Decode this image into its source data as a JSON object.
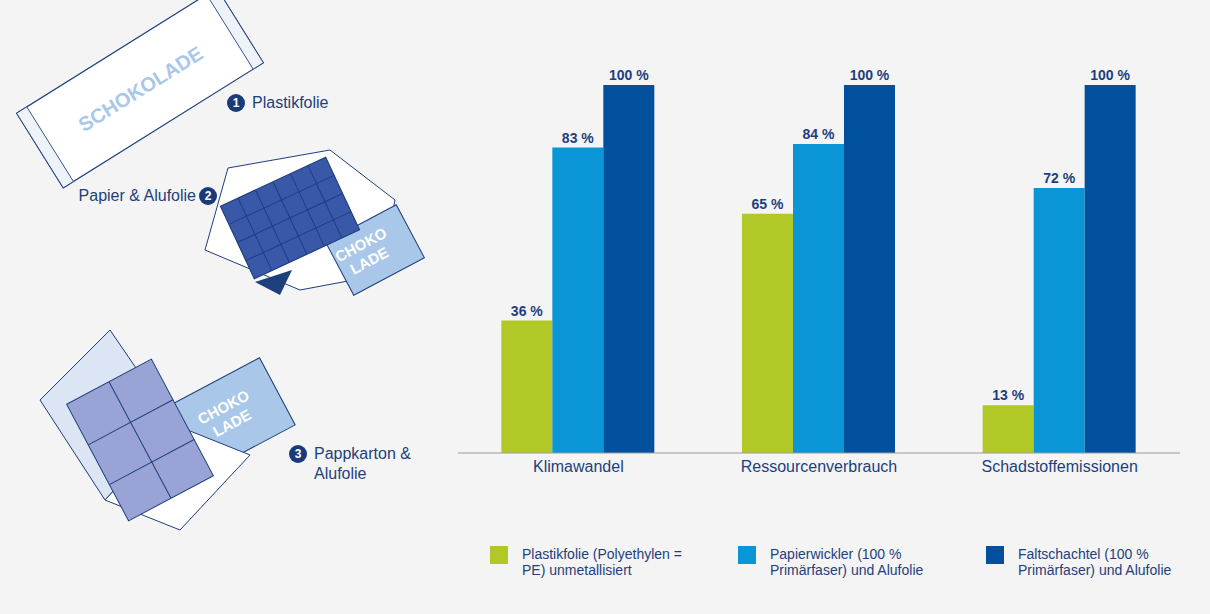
{
  "illustrations": [
    {
      "number": 1,
      "label": "Plastikfolie",
      "print": [
        "SCHOKOLADE"
      ]
    },
    {
      "number": 2,
      "label": "Papier & Alufolie",
      "print": [
        "CHOKO",
        "LADE"
      ]
    },
    {
      "number": 3,
      "label": "Pappkarton & Alufolie",
      "print": [
        "CHOKO",
        "LADE"
      ]
    }
  ],
  "chart_data": {
    "type": "bar",
    "categories": [
      "Klimawandel",
      "Ressourcenverbrauch",
      "Schadstoffemissionen"
    ],
    "series": [
      {
        "name": "Plastikfolie (Polyethylen = PE) unmetallisiert",
        "color": "#b2c826",
        "values": [
          36,
          65,
          13
        ],
        "value_labels": [
          "36 %",
          "65 %",
          "13 %"
        ]
      },
      {
        "name": "Papierwickler (100 % Primärfaser) und Alufolie",
        "color": "#0a96d6",
        "values": [
          83,
          84,
          72
        ],
        "value_labels": [
          "83 %",
          "84 %",
          "72 %"
        ]
      },
      {
        "name": "Faltschachtel (100 % Primärfaser) und Alufolie",
        "color": "#00509d",
        "values": [
          100,
          100,
          100
        ],
        "value_labels": [
          "100 %",
          "100 %",
          "100 %"
        ]
      }
    ],
    "ylim": [
      0,
      100
    ],
    "data_labels": true,
    "tick_labels": "x",
    "legend": "bottom",
    "grid": false
  }
}
